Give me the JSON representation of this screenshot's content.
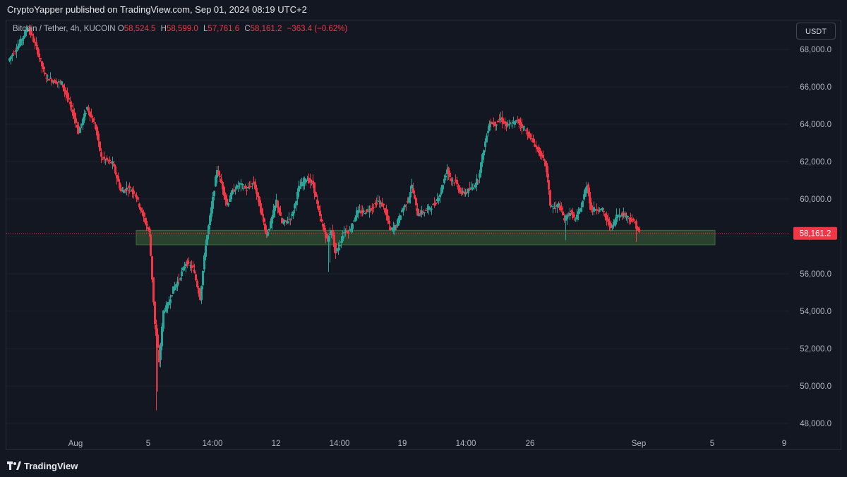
{
  "header": {
    "published_text": "CryptoYapper published on TradingView.com, Sep 01, 2024 08:19 UTC+2"
  },
  "legend": {
    "symbol_text": "Bitcoin / Tether, 4h, KUCOIN",
    "open_label": "O",
    "open_value": "58,524.5",
    "high_label": "H",
    "high_value": "58,599.0",
    "low_label": "L",
    "low_value": "57,761.6",
    "close_label": "C",
    "close_value": "58,161.2",
    "change_value": "−363.4 (−0.62%)"
  },
  "toolbar": {
    "currency_label": "USDT"
  },
  "footer": {
    "brand_label": "TradingView"
  },
  "chart_data": {
    "type": "candlestick",
    "symbol": "Bitcoin / Tether",
    "interval": "4h",
    "exchange": "KUCOIN",
    "ylim": [
      47200,
      69800
    ],
    "y_ticks": [
      48000,
      50000,
      52000,
      54000,
      56000,
      58000,
      60000,
      62000,
      64000,
      66000,
      68000
    ],
    "y_tick_labels": [
      "48,000.0",
      "50,000.0",
      "52,000.0",
      "54,000.0",
      "56,000.0",
      "58,000.0",
      "60,000.0",
      "62,000.0",
      "64,000.0",
      "66,000.0",
      "68,000.0"
    ],
    "x_tick_labels": [
      "Aug",
      "5",
      "14:00",
      "12",
      "14:00",
      "19",
      "14:00",
      "26",
      "Sep",
      "5",
      "9"
    ],
    "last_price": 58161.2,
    "last_price_label": "58,161.2",
    "support_zone": {
      "low": 57700,
      "high": 58250,
      "color": "#2e4a2f"
    },
    "colors": {
      "up": "#26a69a",
      "down": "#f23645",
      "background": "#131722",
      "grid": "#1e222d"
    },
    "price_path": [
      [
        0,
        67400
      ],
      [
        8,
        68300
      ],
      [
        14,
        69200
      ],
      [
        20,
        68100
      ],
      [
        26,
        66600
      ],
      [
        32,
        66300
      ],
      [
        38,
        66200
      ],
      [
        45,
        64800
      ],
      [
        50,
        63600
      ],
      [
        56,
        64900
      ],
      [
        62,
        63800
      ],
      [
        66,
        62200
      ],
      [
        74,
        61900
      ],
      [
        80,
        60400
      ],
      [
        85,
        60600
      ],
      [
        90,
        60300
      ],
      [
        95,
        59200
      ],
      [
        100,
        58200
      ],
      [
        104,
        53300
      ],
      [
        107,
        51300
      ],
      [
        110,
        54000
      ],
      [
        113,
        54300
      ],
      [
        117,
        55200
      ],
      [
        121,
        55700
      ],
      [
        126,
        56600
      ],
      [
        131,
        56300
      ],
      [
        136,
        54700
      ],
      [
        140,
        57600
      ],
      [
        144,
        59500
      ],
      [
        148,
        61600
      ],
      [
        152,
        60600
      ],
      [
        155,
        59700
      ],
      [
        159,
        60400
      ],
      [
        164,
        60800
      ],
      [
        169,
        60500
      ],
      [
        174,
        60900
      ],
      [
        178,
        59700
      ],
      [
        183,
        58100
      ],
      [
        186,
        58700
      ],
      [
        190,
        59900
      ],
      [
        194,
        58700
      ],
      [
        197,
        58800
      ],
      [
        201,
        59100
      ],
      [
        206,
        60600
      ],
      [
        211,
        61100
      ],
      [
        216,
        60800
      ],
      [
        220,
        59300
      ],
      [
        223,
        58500
      ],
      [
        226,
        57800
      ],
      [
        229,
        58400
      ],
      [
        232,
        57100
      ],
      [
        235,
        57600
      ],
      [
        238,
        58300
      ],
      [
        242,
        58300
      ],
      [
        247,
        59300
      ],
      [
        252,
        59300
      ],
      [
        257,
        59500
      ],
      [
        262,
        59900
      ],
      [
        266,
        59600
      ],
      [
        271,
        58300
      ],
      [
        275,
        58600
      ],
      [
        279,
        59400
      ],
      [
        283,
        59900
      ],
      [
        286,
        60700
      ],
      [
        290,
        59200
      ],
      [
        294,
        59300
      ],
      [
        298,
        59500
      ],
      [
        302,
        59700
      ],
      [
        306,
        60300
      ],
      [
        311,
        61600
      ],
      [
        314,
        61000
      ],
      [
        317,
        60900
      ],
      [
        321,
        60300
      ],
      [
        325,
        60400
      ],
      [
        329,
        60600
      ],
      [
        333,
        61100
      ],
      [
        337,
        62700
      ],
      [
        341,
        64100
      ],
      [
        345,
        64000
      ],
      [
        349,
        64300
      ],
      [
        353,
        63900
      ],
      [
        357,
        64000
      ],
      [
        361,
        64200
      ],
      [
        365,
        63800
      ],
      [
        369,
        63400
      ],
      [
        373,
        62900
      ],
      [
        377,
        62400
      ],
      [
        381,
        61800
      ],
      [
        384,
        59700
      ],
      [
        387,
        59500
      ],
      [
        390,
        59700
      ],
      [
        394,
        58900
      ],
      [
        398,
        59300
      ],
      [
        402,
        58900
      ],
      [
        406,
        59600
      ],
      [
        410,
        60800
      ],
      [
        413,
        59400
      ],
      [
        417,
        59500
      ],
      [
        421,
        59400
      ],
      [
        425,
        58700
      ],
      [
        428,
        58500
      ],
      [
        431,
        59100
      ],
      [
        434,
        59200
      ],
      [
        438,
        59100
      ],
      [
        441,
        58900
      ],
      [
        444,
        58700
      ],
      [
        447,
        58161
      ]
    ]
  }
}
